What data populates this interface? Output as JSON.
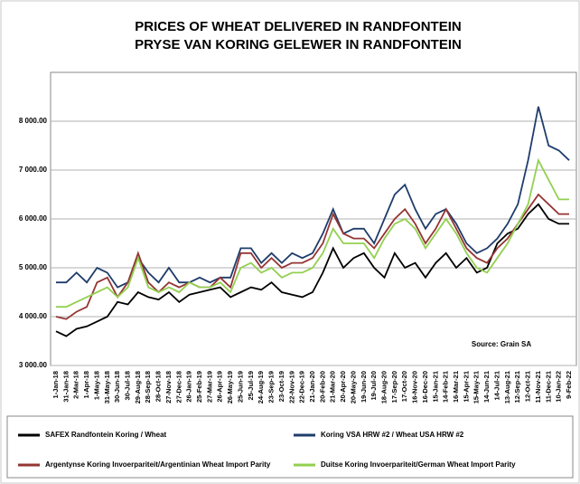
{
  "chart_data": {
    "type": "line",
    "title": "PRICES OF WHEAT DELIVERED IN RANDFONTEIN",
    "subtitle": "PRYSE VAN KORING GELEWER IN RANDFONTEIN",
    "annotation": "Source: Grain SA",
    "categories": [
      "1-Jan-18",
      "31-Jan-18",
      "2-Mar-18",
      "1-Apr-18",
      "1-May-18",
      "31-May-18",
      "30-Jun-18",
      "30-Jul-18",
      "29-Aug-18",
      "28-Sep-18",
      "28-Oct-18",
      "27-Nov-18",
      "27-Dec-18",
      "26-Jan-19",
      "25-Feb-19",
      "27-Mar-19",
      "26-Apr-19",
      "26-May-19",
      "25-Jun-19",
      "25-Jul-19",
      "24-Aug-19",
      "23-Sep-19",
      "23-Oct-19",
      "22-Nov-19",
      "22-Dec-19",
      "21-Jan-20",
      "20-Feb-20",
      "21-Mar-20",
      "20-Apr-20",
      "20-May-20",
      "19-Jun-20",
      "19-Jul-20",
      "18-Aug-20",
      "17-Sep-20",
      "17-Oct-20",
      "16-Nov-20",
      "16-Dec-20",
      "15-Jan-21",
      "14-Feb-21",
      "16-Mar-21",
      "15-Apr-21",
      "15-May-21",
      "14-Jun-21",
      "14-Jul-21",
      "13-Aug-21",
      "12-Sep-21",
      "12-Oct-21",
      "11-Nov-21",
      "11-Dec-21",
      "10-Jan-22",
      "9-Feb-22"
    ],
    "series": [
      {
        "name": "SAFEX    Randfontein  Koring / Wheat",
        "color": "#000000",
        "values": [
          3700,
          3600,
          3750,
          3800,
          3900,
          4000,
          4300,
          4250,
          4500,
          4400,
          4350,
          4500,
          4300,
          4450,
          4500,
          4550,
          4600,
          4400,
          4500,
          4600,
          4550,
          4700,
          4500,
          4450,
          4400,
          4500,
          4900,
          5400,
          5000,
          5200,
          5300,
          5000,
          4800,
          5300,
          5000,
          5100,
          4800,
          5100,
          5300,
          5000,
          5200,
          4900,
          5000,
          5500,
          5700,
          5800,
          6100,
          6300,
          6000,
          5900,
          5900
        ]
      },
      {
        "name": "Koring VSA HRW #2 / Wheat USA HRW #2",
        "color": "#1f3d6b",
        "values": [
          4700,
          4700,
          4900,
          4700,
          5000,
          4900,
          4600,
          4700,
          5200,
          4900,
          4700,
          5000,
          4700,
          4700,
          4800,
          4700,
          4800,
          4800,
          5400,
          5400,
          5100,
          5300,
          5100,
          5300,
          5200,
          5300,
          5700,
          6200,
          5700,
          5800,
          5800,
          5500,
          6000,
          6500,
          6700,
          6200,
          5800,
          6100,
          6200,
          5900,
          5500,
          5300,
          5400,
          5600,
          5900,
          6300,
          7200,
          8300,
          7500,
          7400,
          7200
        ]
      },
      {
        "name": "Argentynse Koring Invoerpariteit/Argentinian Wheat Import Parity",
        "color": "#943634",
        "values": [
          4000,
          3950,
          4100,
          4200,
          4700,
          4800,
          4400,
          4700,
          5300,
          4700,
          4500,
          4700,
          4600,
          4700,
          4600,
          4600,
          4800,
          4600,
          5300,
          5300,
          5000,
          5200,
          5000,
          5100,
          5100,
          5200,
          5500,
          6100,
          5700,
          5600,
          5600,
          5400,
          5700,
          6000,
          6200,
          5900,
          5500,
          5800,
          6200,
          5800,
          5400,
          5200,
          5100,
          5400,
          5600,
          5900,
          6200,
          6500,
          6300,
          6100,
          6100
        ]
      },
      {
        "name": "Duitse Koring Invoerpariteit/German Wheat Import Parity",
        "color": "#92d050",
        "values": [
          4200,
          4200,
          4300,
          4400,
          4500,
          4600,
          4400,
          4600,
          5200,
          4600,
          4500,
          4600,
          4500,
          4700,
          4600,
          4600,
          4700,
          4500,
          5000,
          5100,
          4900,
          5000,
          4800,
          4900,
          4900,
          5000,
          5300,
          5800,
          5500,
          5500,
          5500,
          5200,
          5600,
          5900,
          6000,
          5800,
          5400,
          5700,
          6000,
          5700,
          5300,
          5000,
          4900,
          5200,
          5500,
          5900,
          6300,
          7200,
          6800,
          6400,
          6400
        ]
      }
    ],
    "ylim": [
      3000,
      9000
    ],
    "yticks": [
      {
        "value": 3000,
        "label": "3 000.00"
      },
      {
        "value": 4000,
        "label": "4 000.00"
      },
      {
        "value": 5000,
        "label": "5 000.00"
      },
      {
        "value": 6000,
        "label": "6 000.00"
      },
      {
        "value": 7000,
        "label": "7 000.00"
      },
      {
        "value": 8000,
        "label": "8 000.00"
      }
    ],
    "grid": true
  }
}
